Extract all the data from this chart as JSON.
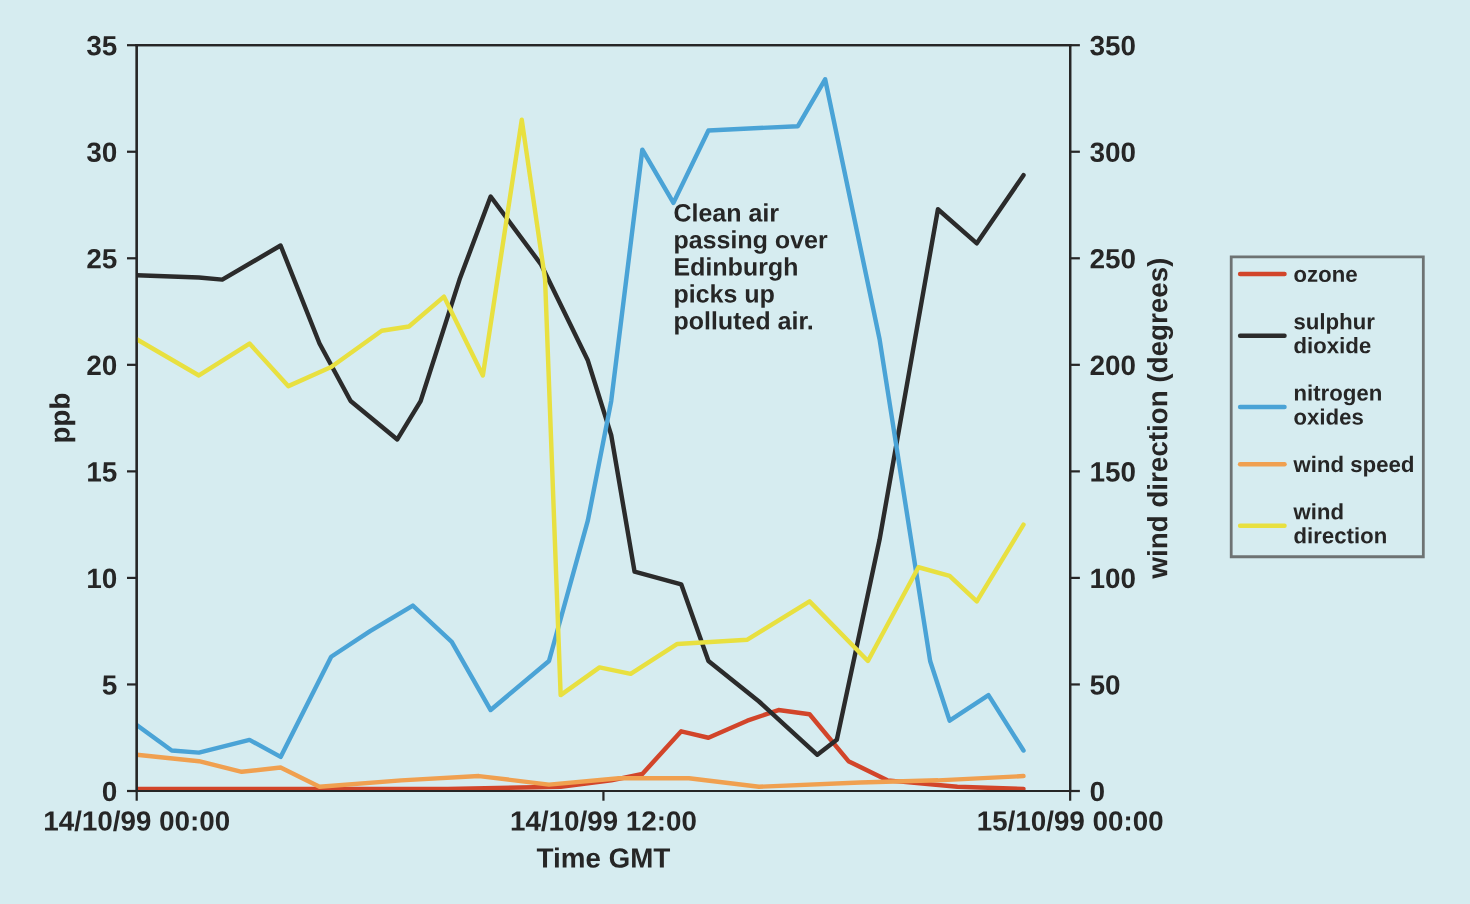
{
  "chart_data": {
    "type": "line",
    "xlabel": "Time GMT",
    "ylabel": "ppb",
    "y2label": "wind direction (degrees)",
    "xlim": [
      "1999-10-14T00:00",
      "1999-10-15T00:00"
    ],
    "xticks": [
      {
        "value": "1999-10-14T00:00",
        "label": "14/10/99 00:00"
      },
      {
        "value": "1999-10-14T12:00",
        "label": "14/10/99 12:00"
      },
      {
        "value": "1999-10-15T00:00",
        "label": "15/10/99 00:00"
      }
    ],
    "ylim": [
      0,
      35
    ],
    "yticks": [
      0,
      5,
      10,
      15,
      20,
      25,
      30,
      35
    ],
    "y2lim": [
      0,
      350
    ],
    "y2ticks": [
      0,
      50,
      100,
      150,
      200,
      250,
      300,
      350
    ],
    "grid": false,
    "legend": "right",
    "marker": "none",
    "line_style": "solid",
    "annotations": [
      "Clean air\npassing over\nEdinburgh\npicks up\npolluted air."
    ],
    "series": [
      {
        "name": "ozone",
        "color": "#d2452a",
        "x": [
          "1999-10-14T00:00",
          "1999-10-14T04:00",
          "1999-10-14T08:00",
          "1999-10-14T10:54",
          "1999-10-14T12:12",
          "1999-10-14T13:00",
          "1999-10-14T14:00",
          "1999-10-14T14:42",
          "1999-10-14T15:42",
          "1999-10-14T16:30",
          "1999-10-14T17:18",
          "1999-10-14T18:18",
          "1999-10-14T19:18",
          "1999-10-14T21:06",
          "1999-10-14T22:48"
        ],
        "values": [
          0.1,
          0.1,
          0.1,
          0.2,
          0.5,
          0.8,
          2.8,
          2.5,
          3.3,
          3.8,
          3.6,
          1.4,
          0.5,
          0.2,
          0.1
        ]
      },
      {
        "name": "sulphur dioxide",
        "color": "#2b2b2b",
        "x": [
          "1999-10-14T00:00",
          "1999-10-14T01:36",
          "1999-10-14T02:12",
          "1999-10-14T03:42",
          "1999-10-14T04:42",
          "1999-10-14T05:30",
          "1999-10-14T06:42",
          "1999-10-14T07:18",
          "1999-10-14T08:18",
          "1999-10-14T09:06",
          "1999-10-14T10:24",
          "1999-10-14T11:36",
          "1999-10-14T12:12",
          "1999-10-14T12:48",
          "1999-10-14T14:00",
          "1999-10-14T14:42",
          "1999-10-14T16:00",
          "1999-10-14T17:30",
          "1999-10-14T18:00",
          "1999-10-14T19:06",
          "1999-10-14T20:36",
          "1999-10-14T21:36",
          "1999-10-14T22:48"
        ],
        "values": [
          24.2,
          24.1,
          24.0,
          25.6,
          21,
          18.3,
          16.5,
          18.3,
          24,
          27.9,
          24.7,
          20.2,
          16.7,
          10.3,
          9.7,
          6.1,
          4.2,
          1.7,
          2.4,
          11.8,
          27.3,
          25.7,
          28.9
        ]
      },
      {
        "name": "nitrogen oxides",
        "color": "#4aa3d6",
        "x": [
          "1999-10-14T00:00",
          "1999-10-14T00:54",
          "1999-10-14T01:36",
          "1999-10-14T02:54",
          "1999-10-14T03:42",
          "1999-10-14T05:00",
          "1999-10-14T06:00",
          "1999-10-14T07:06",
          "1999-10-14T08:06",
          "1999-10-14T09:06",
          "1999-10-14T10:36",
          "1999-10-14T11:36",
          "1999-10-14T12:12",
          "1999-10-14T13:00",
          "1999-10-14T13:48",
          "1999-10-14T14:42",
          "1999-10-14T17:00",
          "1999-10-14T17:42",
          "1999-10-14T19:06",
          "1999-10-14T20:24",
          "1999-10-14T20:54",
          "1999-10-14T21:54",
          "1999-10-14T22:48"
        ],
        "values": [
          3.1,
          1.9,
          1.8,
          2.4,
          1.6,
          6.3,
          7.5,
          8.7,
          7,
          3.8,
          6.1,
          12.7,
          18.3,
          30.1,
          27.6,
          31,
          31.2,
          33.4,
          21.2,
          6.1,
          3.3,
          4.5,
          1.9
        ]
      },
      {
        "name": "wind speed",
        "color": "#f0a050",
        "x": [
          "1999-10-14T00:00",
          "1999-10-14T01:36",
          "1999-10-14T02:42",
          "1999-10-14T03:42",
          "1999-10-14T04:42",
          "1999-10-14T06:48",
          "1999-10-14T08:48",
          "1999-10-14T10:36",
          "1999-10-14T12:24",
          "1999-10-14T14:12",
          "1999-10-14T16:00",
          "1999-10-14T18:36",
          "1999-10-14T20:36",
          "1999-10-14T22:48"
        ],
        "values": [
          1.7,
          1.4,
          0.9,
          1.1,
          0.2,
          0.5,
          0.7,
          0.3,
          0.6,
          0.6,
          0.2,
          0.4,
          0.5,
          0.7
        ]
      },
      {
        "name": "wind direction",
        "color": "#e8e040",
        "axis": "y2",
        "x": [
          "1999-10-14T00:00",
          "1999-10-14T01:36",
          "1999-10-14T02:54",
          "1999-10-14T03:54",
          "1999-10-14T05:00",
          "1999-10-14T06:18",
          "1999-10-14T07:00",
          "1999-10-14T07:54",
          "1999-10-14T08:54",
          "1999-10-14T09:54",
          "1999-10-14T10:30",
          "1999-10-14T10:54",
          "1999-10-14T11:54",
          "1999-10-14T12:42",
          "1999-10-14T13:54",
          "1999-10-14T15:42",
          "1999-10-14T17:18",
          "1999-10-14T18:48",
          "1999-10-14T20:06",
          "1999-10-14T20:54",
          "1999-10-14T21:36",
          "1999-10-14T22:48"
        ],
        "values": [
          212,
          195,
          210,
          190,
          199,
          216,
          218,
          232,
          195,
          315,
          240,
          45,
          58,
          55,
          69,
          71,
          89,
          61,
          105,
          101,
          89,
          125
        ]
      }
    ]
  }
}
